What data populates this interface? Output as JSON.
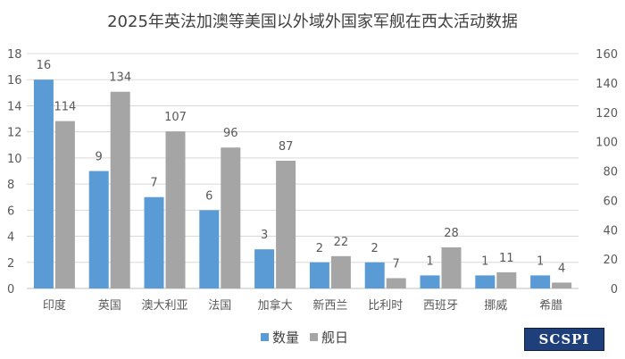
{
  "colors": {
    "series_1": "#5b9bd5",
    "series_2": "#a5a5a5",
    "grid": "#d9d9d9",
    "text": "#595959"
  },
  "watermark": {
    "text": "SCSPI"
  },
  "chart_data": {
    "type": "bar",
    "title": "2025年英法加澳等美国以外域外国家军舰在西太活动数据",
    "categories": [
      "印度",
      "英国",
      "澳大利亚",
      "法国",
      "加拿大",
      "新西兰",
      "比利时",
      "西班牙",
      "挪威",
      "希腊"
    ],
    "series": [
      {
        "name": "数量",
        "axis": "left",
        "values": [
          16,
          9,
          7,
          6,
          3,
          2,
          2,
          1,
          1,
          1
        ]
      },
      {
        "name": "舰日",
        "axis": "right",
        "values": [
          114,
          134,
          107,
          96,
          87,
          22,
          7,
          28,
          11,
          4
        ]
      }
    ],
    "y_left": {
      "min": 0,
      "max": 18,
      "step": 2
    },
    "y_right": {
      "min": 0,
      "max": 160,
      "step": 20
    },
    "grid": true,
    "legend": "bottom"
  }
}
